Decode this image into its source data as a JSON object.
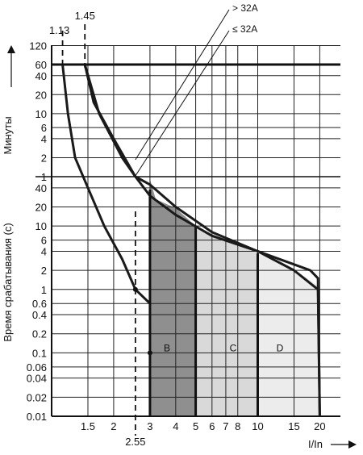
{
  "chart_data": {
    "type": "line",
    "title": "",
    "xlabel": "I/In",
    "y_axis_labels": {
      "minutes": "Минуты",
      "seconds": "Время срабатывания (с)"
    },
    "x_scale": "log",
    "x_range": [
      1,
      20
    ],
    "x_ticks": [
      "1.5",
      "2",
      "3",
      "4",
      "5",
      "6",
      "7",
      "8",
      "10",
      "15",
      "20"
    ],
    "x_top_marks": [
      "1.13",
      "1.45"
    ],
    "x_bottom_mark": "2.55",
    "y_minutes_ticks": [
      "120",
      "60",
      "40",
      "20",
      "10",
      "6",
      "4",
      "2",
      "1"
    ],
    "y_seconds_ticks": [
      "40",
      "20",
      "10",
      "6",
      "4",
      "2",
      "1",
      "0.6",
      "0.4",
      "0.2",
      "0.1",
      "0.06",
      "0.04",
      "0.02",
      "0.01"
    ],
    "grid": true,
    "annotations": [
      "> 32A",
      "≤ 32A"
    ],
    "zones": [
      {
        "name": "B",
        "x_from": 3,
        "x_to": 5,
        "color": "#8f8f8f"
      },
      {
        "name": "C",
        "x_from": 5,
        "x_to": 10,
        "color": "#d9d9d9"
      },
      {
        "name": "D",
        "x_from": 10,
        "x_to": 20,
        "color": "#ececec"
      }
    ],
    "series": [
      {
        "values": [
          [
            1.13,
            "60 min"
          ],
          [
            1.2,
            "10 min"
          ],
          [
            1.3,
            "2 min"
          ],
          [
            1.5,
            "40 s"
          ],
          [
            1.8,
            "10 s"
          ],
          [
            2.2,
            "3 s"
          ],
          [
            2.55,
            "1 s"
          ],
          [
            3.0,
            "0.6 s"
          ]
        ]
      },
      {
        "values": [
          [
            1.45,
            "60 min"
          ],
          [
            1.6,
            "15 min"
          ],
          [
            2.0,
            "4 min"
          ],
          [
            2.55,
            "1 min"
          ],
          [
            3.0,
            "30 s"
          ],
          [
            4.0,
            "15 s"
          ],
          [
            6.0,
            "7 s"
          ],
          [
            10.0,
            "4 s"
          ],
          [
            18.0,
            "2 s"
          ],
          [
            19.6,
            "1.5 s"
          ],
          [
            20.0,
            "0.01 s"
          ]
        ]
      },
      {
        "values": [
          [
            1.45,
            "60 min"
          ],
          [
            1.7,
            "10 min"
          ],
          [
            2.2,
            "2 min"
          ],
          [
            2.55,
            "1 min"
          ],
          [
            3.0,
            "45 s"
          ],
          [
            4.0,
            "20 s"
          ],
          [
            6.0,
            "8 s"
          ],
          [
            10.0,
            "4 s"
          ],
          [
            15.0,
            "2 s"
          ],
          [
            19.6,
            "1 s"
          ],
          [
            20.0,
            "0.01 s"
          ]
        ]
      }
    ]
  }
}
